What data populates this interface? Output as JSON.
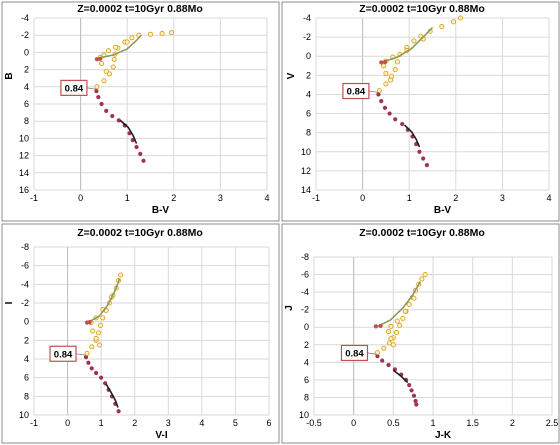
{
  "chart_data": [
    {
      "type": "scatter",
      "title": "Z=0.0002  t=10Gyr  0.88Mo",
      "xlabel": "B-V",
      "ylabel": "B",
      "xlim": [
        -1,
        4
      ],
      "ylim": [
        16,
        -4
      ],
      "x_ticks": [
        -1,
        0,
        1,
        2,
        3,
        4
      ],
      "y_ticks": [
        -4,
        -2,
        0,
        2,
        4,
        6,
        8,
        10,
        12,
        14,
        16
      ],
      "y_inverted": true,
      "grid": true,
      "annotation": {
        "text": "0.84",
        "x": 0.35,
        "y": 4.3
      },
      "series": [
        {
          "color": "#a0334f",
          "marker": "filled-circle",
          "points": [
            [
              0.34,
              4.5
            ],
            [
              0.38,
              5.2
            ],
            [
              0.45,
              6.0
            ],
            [
              0.55,
              6.8
            ],
            [
              0.68,
              7.4
            ],
            [
              0.82,
              7.9
            ],
            [
              0.95,
              8.5
            ],
            [
              1.05,
              9.4
            ],
            [
              1.12,
              10.2
            ],
            [
              1.2,
              11.0
            ],
            [
              1.28,
              11.8
            ],
            [
              1.35,
              12.6
            ]
          ]
        },
        {
          "color": "#1f1f1f",
          "marker": "line",
          "points": [
            [
              0.85,
              7.9
            ],
            [
              1.02,
              8.7
            ],
            [
              1.12,
              9.6
            ],
            [
              1.2,
              10.6
            ]
          ]
        },
        {
          "color": "#e0a020",
          "marker": "open-circle",
          "points": [
            [
              0.35,
              4.0
            ],
            [
              0.5,
              3.3
            ],
            [
              0.62,
              2.5
            ],
            [
              0.7,
              1.7
            ],
            [
              0.72,
              0.8
            ],
            [
              0.74,
              0.2
            ],
            [
              0.8,
              -0.5
            ],
            [
              0.95,
              -1.2
            ],
            [
              1.1,
              -1.7
            ],
            [
              1.25,
              -2.0
            ],
            [
              1.5,
              -2.1
            ],
            [
              1.75,
              -2.2
            ],
            [
              1.95,
              -2.3
            ],
            [
              1.0,
              -1.2
            ],
            [
              0.75,
              -0.6
            ],
            [
              0.6,
              -0.2
            ],
            [
              0.5,
              0.3
            ],
            [
              0.42,
              0.6
            ],
            [
              0.45,
              1.3
            ],
            [
              0.55,
              2.2
            ]
          ]
        },
        {
          "color": "#8a9a5b",
          "marker": "line",
          "points": [
            [
              0.35,
              0.7
            ],
            [
              0.7,
              0.3
            ],
            [
              1.0,
              -0.4
            ],
            [
              1.2,
              -1.4
            ],
            [
              1.3,
              -2.0
            ]
          ]
        },
        {
          "color": "#c05050",
          "marker": "filled-circle",
          "points": [
            [
              0.35,
              0.8
            ],
            [
              0.42,
              0.75
            ]
          ]
        }
      ]
    },
    {
      "type": "scatter",
      "title": "Z=0.0002  t=10Gyr  0.88Mo",
      "xlabel": "B-V",
      "ylabel": "V",
      "xlim": [
        -1,
        4
      ],
      "ylim": [
        14,
        -4
      ],
      "x_ticks": [
        -1,
        0,
        1,
        2,
        3,
        4
      ],
      "y_ticks": [
        -4,
        -2,
        0,
        2,
        4,
        6,
        8,
        10,
        12,
        14
      ],
      "y_inverted": true,
      "grid": true,
      "annotation": {
        "text": "0.84",
        "x": 0.35,
        "y": 3.8
      },
      "series": [
        {
          "color": "#a0334f",
          "marker": "filled-circle",
          "points": [
            [
              0.34,
              4.0
            ],
            [
              0.4,
              4.7
            ],
            [
              0.48,
              5.4
            ],
            [
              0.58,
              6.0
            ],
            [
              0.7,
              6.6
            ],
            [
              0.85,
              7.1
            ],
            [
              0.97,
              7.7
            ],
            [
              1.07,
              8.4
            ],
            [
              1.15,
              9.2
            ],
            [
              1.22,
              10.0
            ],
            [
              1.3,
              10.7
            ],
            [
              1.38,
              11.4
            ]
          ]
        },
        {
          "color": "#1f1f1f",
          "marker": "line",
          "points": [
            [
              0.9,
              7.2
            ],
            [
              1.05,
              7.9
            ],
            [
              1.15,
              8.7
            ],
            [
              1.22,
              9.5
            ]
          ]
        },
        {
          "color": "#e0a020",
          "marker": "open-circle",
          "points": [
            [
              0.36,
              3.6
            ],
            [
              0.5,
              2.9
            ],
            [
              0.62,
              2.1
            ],
            [
              0.7,
              1.4
            ],
            [
              0.75,
              0.6
            ],
            [
              0.8,
              -0.2
            ],
            [
              0.95,
              -0.9
            ],
            [
              1.1,
              -1.6
            ],
            [
              1.25,
              -2.1
            ],
            [
              1.45,
              -2.6
            ],
            [
              1.7,
              -3.1
            ],
            [
              1.95,
              -3.6
            ],
            [
              2.1,
              -4.0
            ],
            [
              1.3,
              -1.8
            ],
            [
              0.95,
              -0.6
            ],
            [
              0.65,
              0.1
            ],
            [
              0.5,
              0.5
            ],
            [
              0.45,
              1.0
            ],
            [
              0.5,
              1.8
            ],
            [
              0.6,
              2.5
            ]
          ]
        },
        {
          "color": "#8a9a5b",
          "marker": "line",
          "points": [
            [
              0.42,
              0.6
            ],
            [
              0.75,
              0.1
            ],
            [
              1.05,
              -0.8
            ],
            [
              1.3,
              -2.0
            ],
            [
              1.5,
              -3.0
            ]
          ]
        },
        {
          "color": "#c05050",
          "marker": "filled-circle",
          "points": [
            [
              0.4,
              0.65
            ],
            [
              0.48,
              0.6
            ]
          ]
        }
      ]
    },
    {
      "type": "scatter",
      "title": "Z=0.0002  t=10Gyr  0.88Mo",
      "xlabel": "V-I",
      "ylabel": "I",
      "xlim": [
        -1,
        6
      ],
      "ylim": [
        10,
        -8
      ],
      "x_ticks": [
        -1,
        0,
        1,
        2,
        3,
        4,
        5,
        6
      ],
      "y_ticks": [
        -8,
        -6,
        -4,
        -2,
        0,
        2,
        4,
        6,
        8,
        10
      ],
      "y_inverted": true,
      "grid": true,
      "annotation": {
        "text": "0.84",
        "x": 0.55,
        "y": 3.6
      },
      "series": [
        {
          "color": "#a0334f",
          "marker": "filled-circle",
          "points": [
            [
              0.55,
              3.8
            ],
            [
              0.62,
              4.4
            ],
            [
              0.72,
              5.0
            ],
            [
              0.85,
              5.5
            ],
            [
              1.0,
              6.0
            ],
            [
              1.12,
              6.6
            ],
            [
              1.22,
              7.3
            ],
            [
              1.32,
              8.0
            ],
            [
              1.42,
              8.8
            ],
            [
              1.52,
              9.6
            ]
          ]
        },
        {
          "color": "#1f1f1f",
          "marker": "line",
          "points": [
            [
              1.15,
              6.7
            ],
            [
              1.3,
              7.6
            ],
            [
              1.42,
              8.4
            ],
            [
              1.5,
              9.2
            ]
          ]
        },
        {
          "color": "#e0a020",
          "marker": "open-circle",
          "points": [
            [
              0.58,
              3.4
            ],
            [
              0.72,
              2.7
            ],
            [
              0.85,
              2.0
            ],
            [
              0.92,
              1.2
            ],
            [
              0.98,
              0.4
            ],
            [
              1.05,
              -0.4
            ],
            [
              1.15,
              -1.2
            ],
            [
              1.25,
              -2.0
            ],
            [
              1.35,
              -2.8
            ],
            [
              1.45,
              -3.6
            ],
            [
              1.52,
              -4.4
            ],
            [
              1.58,
              -5.0
            ],
            [
              1.3,
              -2.6
            ],
            [
              1.05,
              -1.3
            ],
            [
              0.85,
              -0.4
            ],
            [
              0.7,
              0.1
            ],
            [
              0.75,
              1.0
            ],
            [
              0.85,
              1.8
            ],
            [
              0.95,
              2.5
            ]
          ]
        },
        {
          "color": "#8a9a5b",
          "marker": "line",
          "points": [
            [
              0.6,
              0.1
            ],
            [
              0.95,
              -0.6
            ],
            [
              1.2,
              -1.8
            ],
            [
              1.4,
              -3.2
            ],
            [
              1.55,
              -4.6
            ]
          ]
        },
        {
          "color": "#c05050",
          "marker": "filled-circle",
          "points": [
            [
              0.58,
              0.1
            ],
            [
              0.66,
              0.05
            ]
          ]
        }
      ]
    },
    {
      "type": "scatter",
      "title": "Z=0.0002  t=10Gyr  0.88Mo",
      "xlabel": "J-K",
      "ylabel": "J",
      "xlim": [
        -0.5,
        2.5
      ],
      "ylim": [
        10,
        -8
      ],
      "x_ticks": [
        -0.5,
        0,
        0.5,
        1,
        1.5,
        2,
        2.5
      ],
      "y_ticks": [
        -8,
        -6,
        -4,
        -2,
        0,
        2,
        4,
        6,
        8,
        10
      ],
      "y_inverted": true,
      "grid": true,
      "annotation": {
        "text": "0.84",
        "x": 0.3,
        "y": 3.1
      },
      "series": [
        {
          "color": "#a0334f",
          "marker": "filled-circle",
          "points": [
            [
              0.3,
              3.3
            ],
            [
              0.36,
              3.8
            ],
            [
              0.44,
              4.3
            ],
            [
              0.52,
              4.8
            ],
            [
              0.6,
              5.4
            ],
            [
              0.66,
              6.0
            ],
            [
              0.7,
              6.6
            ],
            [
              0.73,
              7.2
            ],
            [
              0.76,
              7.8
            ],
            [
              0.78,
              8.4
            ],
            [
              0.79,
              8.8
            ]
          ]
        },
        {
          "color": "#1f1f1f",
          "marker": "line",
          "points": [
            [
              0.5,
              4.9
            ],
            [
              0.6,
              5.6
            ],
            [
              0.68,
              6.3
            ]
          ]
        },
        {
          "color": "#e0a020",
          "marker": "open-circle",
          "points": [
            [
              0.3,
              2.9
            ],
            [
              0.38,
              2.4
            ],
            [
              0.45,
              1.8
            ],
            [
              0.5,
              1.2
            ],
            [
              0.54,
              0.6
            ],
            [
              0.58,
              -0.2
            ],
            [
              0.62,
              -1.0
            ],
            [
              0.66,
              -1.8
            ],
            [
              0.7,
              -2.6
            ],
            [
              0.74,
              -3.4
            ],
            [
              0.78,
              -4.2
            ],
            [
              0.82,
              -4.9
            ],
            [
              0.86,
              -5.5
            ],
            [
              0.9,
              -6.0
            ],
            [
              0.76,
              -3.3
            ],
            [
              0.65,
              -1.8
            ],
            [
              0.55,
              -0.7
            ],
            [
              0.47,
              -0.1
            ],
            [
              0.44,
              0.5
            ],
            [
              0.47,
              1.3
            ],
            [
              0.5,
              2.0
            ]
          ]
        },
        {
          "color": "#8a9a5b",
          "marker": "line",
          "points": [
            [
              0.3,
              -0.1
            ],
            [
              0.46,
              -0.8
            ],
            [
              0.62,
              -2.2
            ],
            [
              0.74,
              -3.6
            ],
            [
              0.84,
              -5.2
            ]
          ]
        },
        {
          "color": "#c05050",
          "marker": "filled-circle",
          "points": [
            [
              0.28,
              -0.1
            ],
            [
              0.34,
              -0.15
            ]
          ]
        }
      ]
    }
  ]
}
